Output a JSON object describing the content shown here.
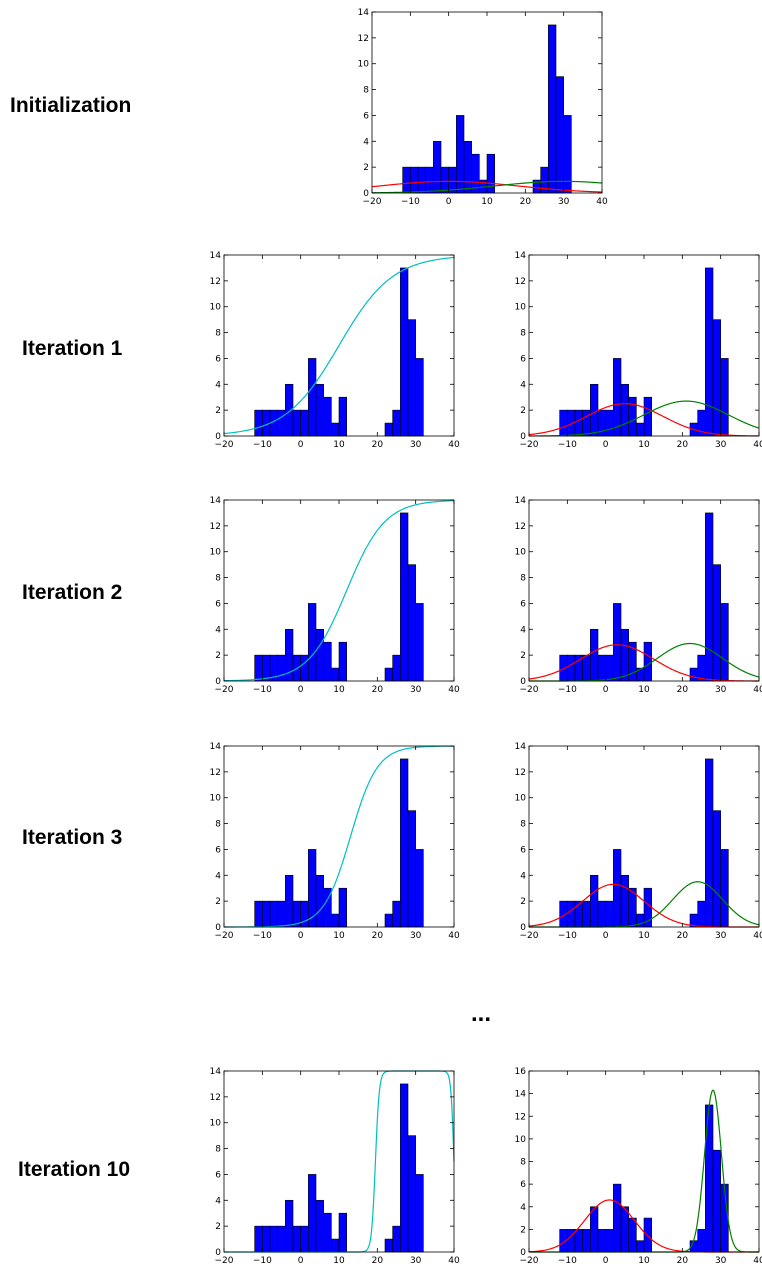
{
  "row_labels": [
    "Initialization",
    "Iteration 1",
    "Iteration 2",
    "Iteration 3",
    "Iteration 10"
  ],
  "ellipsis": "...",
  "colors": {
    "bar": "#0000ff",
    "bar_edge": "#000000",
    "sigmoid": "#00bfbf",
    "red": "#ff0000",
    "green": "#008000"
  },
  "histogram": {
    "bin_left_edges": [
      -12,
      -10,
      -8,
      -6,
      -4,
      -2,
      0,
      2,
      4,
      6,
      8,
      10,
      12,
      14,
      16,
      18,
      20,
      22,
      24,
      26,
      28,
      30
    ],
    "bin_width": 2,
    "counts": [
      2,
      2,
      2,
      2,
      4,
      2,
      2,
      6,
      4,
      3,
      1,
      3,
      0,
      0,
      0,
      0,
      0,
      1,
      2,
      13,
      9,
      6
    ]
  },
  "chart_data": [
    {
      "row": "Initialization",
      "panel": "gaussians",
      "type": "bar",
      "xlim": [
        -20,
        40
      ],
      "ylim": [
        0,
        14
      ],
      "xticks": [
        -20,
        -10,
        0,
        10,
        20,
        30,
        40
      ],
      "yticks": [
        0,
        2,
        4,
        6,
        8,
        10,
        12,
        14
      ],
      "xtick_labels": [
        "−20",
        "−10",
        "0",
        "10",
        "20",
        "30",
        "40"
      ],
      "ytick_labels": [
        "0",
        "2",
        "4",
        "6",
        "8",
        "10",
        "12",
        "14"
      ],
      "curves": [
        {
          "kind": "gauss",
          "color": "red",
          "peak": 0.9,
          "mu": 0,
          "sigma": 18
        },
        {
          "kind": "gauss",
          "color": "green",
          "peak": 0.9,
          "mu": 30,
          "sigma": 18
        }
      ]
    },
    {
      "row": "Iteration 1",
      "panel": "sigmoid",
      "type": "bar",
      "xlim": [
        -20,
        40
      ],
      "ylim": [
        0,
        14
      ],
      "xticks": [
        -20,
        -10,
        0,
        10,
        20,
        30,
        40
      ],
      "yticks": [
        0,
        2,
        4,
        6,
        8,
        10,
        12,
        14
      ],
      "xtick_labels": [
        "−20",
        "−10",
        "0",
        "10",
        "20",
        "30",
        "40"
      ],
      "ytick_labels": [
        "0",
        "2",
        "4",
        "6",
        "8",
        "10",
        "12",
        "14"
      ],
      "curves": [
        {
          "kind": "sigmoid",
          "color": "sigmoid",
          "max": 14,
          "center": 10,
          "scale": 7
        }
      ]
    },
    {
      "row": "Iteration 1",
      "panel": "gaussians",
      "type": "bar",
      "xlim": [
        -20,
        40
      ],
      "ylim": [
        0,
        14
      ],
      "xticks": [
        -20,
        -10,
        0,
        10,
        20,
        30,
        40
      ],
      "yticks": [
        0,
        2,
        4,
        6,
        8,
        10,
        12,
        14
      ],
      "xtick_labels": [
        "−20",
        "−10",
        "0",
        "10",
        "20",
        "30",
        "40"
      ],
      "ytick_labels": [
        "0",
        "2",
        "4",
        "6",
        "8",
        "10",
        "12",
        "14"
      ],
      "curves": [
        {
          "kind": "gauss",
          "color": "red",
          "peak": 2.5,
          "mu": 5,
          "sigma": 10
        },
        {
          "kind": "gauss",
          "color": "green",
          "peak": 2.7,
          "mu": 21,
          "sigma": 11
        }
      ]
    },
    {
      "row": "Iteration 2",
      "panel": "sigmoid",
      "type": "bar",
      "xlim": [
        -20,
        40
      ],
      "ylim": [
        0,
        14
      ],
      "xticks": [
        -20,
        -10,
        0,
        10,
        20,
        30,
        40
      ],
      "yticks": [
        0,
        2,
        4,
        6,
        8,
        10,
        12,
        14
      ],
      "xtick_labels": [
        "−20",
        "−10",
        "0",
        "10",
        "20",
        "30",
        "40"
      ],
      "ytick_labels": [
        "0",
        "2",
        "4",
        "6",
        "8",
        "10",
        "12",
        "14"
      ],
      "curves": [
        {
          "kind": "sigmoid",
          "color": "sigmoid",
          "max": 14,
          "center": 12,
          "scale": 5
        }
      ]
    },
    {
      "row": "Iteration 2",
      "panel": "gaussians",
      "type": "bar",
      "xlim": [
        -20,
        40
      ],
      "ylim": [
        0,
        14
      ],
      "xticks": [
        -20,
        -10,
        0,
        10,
        20,
        30,
        40
      ],
      "yticks": [
        0,
        2,
        4,
        6,
        8,
        10,
        12,
        14
      ],
      "xtick_labels": [
        "−20",
        "−10",
        "0",
        "10",
        "20",
        "30",
        "40"
      ],
      "ytick_labels": [
        "0",
        "2",
        "4",
        "6",
        "8",
        "10",
        "12",
        "14"
      ],
      "curves": [
        {
          "kind": "gauss",
          "color": "red",
          "peak": 2.8,
          "mu": 3,
          "sigma": 9.5
        },
        {
          "kind": "gauss",
          "color": "green",
          "peak": 2.9,
          "mu": 22,
          "sigma": 8.5
        }
      ]
    },
    {
      "row": "Iteration 3",
      "panel": "sigmoid",
      "type": "bar",
      "xlim": [
        -20,
        40
      ],
      "ylim": [
        0,
        14
      ],
      "xticks": [
        -20,
        -10,
        0,
        10,
        20,
        30,
        40
      ],
      "yticks": [
        0,
        2,
        4,
        6,
        8,
        10,
        12,
        14
      ],
      "xtick_labels": [
        "−20",
        "−10",
        "0",
        "10",
        "20",
        "30",
        "40"
      ],
      "ytick_labels": [
        "0",
        "2",
        "4",
        "6",
        "8",
        "10",
        "12",
        "14"
      ],
      "curves": [
        {
          "kind": "sigmoid",
          "color": "sigmoid",
          "max": 14,
          "center": 13,
          "scale": 3.5
        }
      ]
    },
    {
      "row": "Iteration 3",
      "panel": "gaussians",
      "type": "bar",
      "xlim": [
        -20,
        40
      ],
      "ylim": [
        0,
        14
      ],
      "xticks": [
        -20,
        -10,
        0,
        10,
        20,
        30,
        40
      ],
      "yticks": [
        0,
        2,
        4,
        6,
        8,
        10,
        12,
        14
      ],
      "xtick_labels": [
        "−20",
        "−10",
        "0",
        "10",
        "20",
        "30",
        "40"
      ],
      "ytick_labels": [
        "0",
        "2",
        "4",
        "6",
        "8",
        "10",
        "12",
        "14"
      ],
      "curves": [
        {
          "kind": "gauss",
          "color": "red",
          "peak": 3.3,
          "mu": 2,
          "sigma": 8
        },
        {
          "kind": "gauss",
          "color": "green",
          "peak": 3.5,
          "mu": 24,
          "sigma": 6.5
        }
      ]
    },
    {
      "row": "Iteration 10",
      "panel": "sigmoid",
      "type": "bar",
      "xlim": [
        -20,
        40
      ],
      "ylim": [
        0,
        14
      ],
      "xticks": [
        -20,
        -10,
        0,
        10,
        20,
        30,
        40
      ],
      "yticks": [
        0,
        2,
        4,
        6,
        8,
        10,
        12,
        14
      ],
      "xtick_labels": [
        "−20",
        "−10",
        "0",
        "10",
        "20",
        "30",
        "40"
      ],
      "ytick_labels": [
        "0",
        "2",
        "4",
        "6",
        "8",
        "10",
        "12",
        "14"
      ],
      "curves": [
        {
          "kind": "plateau",
          "color": "sigmoid",
          "max": 14,
          "rise": 19.5,
          "rise_scale": 0.5,
          "fall": 40,
          "fall_scale": 0.4
        }
      ]
    },
    {
      "row": "Iteration 10",
      "panel": "gaussians",
      "type": "bar",
      "xlim": [
        -20,
        40
      ],
      "ylim": [
        0,
        16
      ],
      "xticks": [
        -20,
        -10,
        0,
        10,
        20,
        30,
        40
      ],
      "yticks": [
        0,
        2,
        4,
        6,
        8,
        10,
        12,
        14,
        16
      ],
      "xtick_labels": [
        "−20",
        "−10",
        "0",
        "10",
        "20",
        "30",
        "40"
      ],
      "ytick_labels": [
        "0",
        "2",
        "4",
        "6",
        "8",
        "10",
        "12",
        "14",
        "16"
      ],
      "curves": [
        {
          "kind": "gauss",
          "color": "red",
          "peak": 4.6,
          "mu": 1,
          "sigma": 6.5
        },
        {
          "kind": "gauss",
          "color": "green",
          "peak": 14.3,
          "mu": 28,
          "sigma": 2.2
        }
      ]
    }
  ]
}
